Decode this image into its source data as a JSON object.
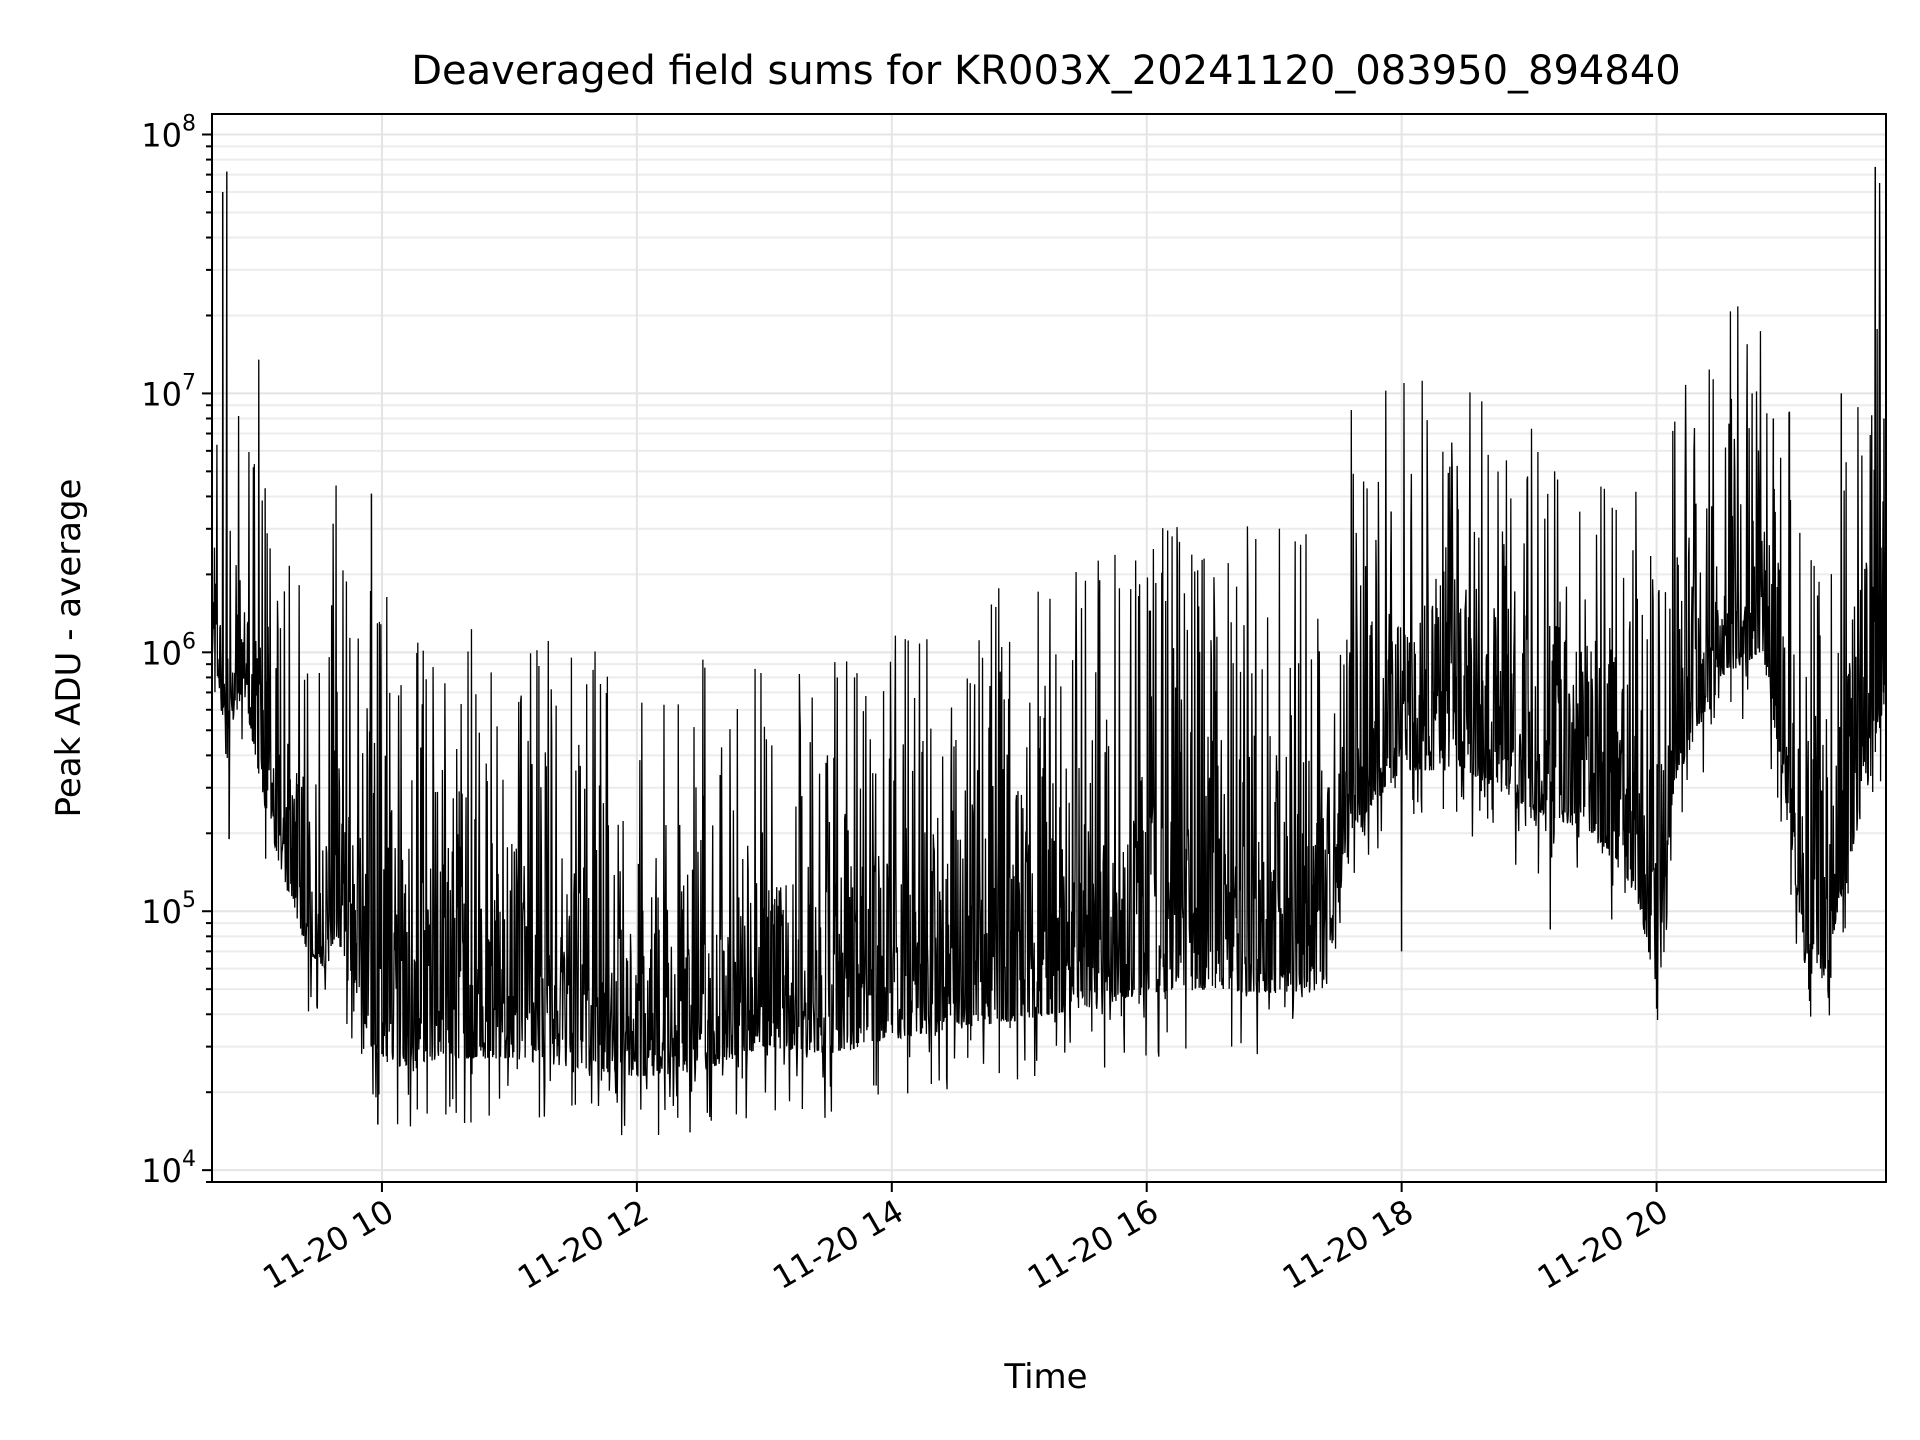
{
  "chart_data": {
    "type": "line",
    "title": "Deaveraged field sums for KR003X_20241120_083950_894840",
    "xlabel": "Time",
    "ylabel": "Peak ADU - average",
    "y_scale": "log",
    "ylim": [
      9000,
      120000000
    ],
    "xlim": [
      "2024-11-20 08:40",
      "2024-11-20 21:48"
    ],
    "grid": true,
    "legend": "none",
    "line_color": "#000000",
    "x_ticks": [
      "11-20 10",
      "11-20 12",
      "11-20 14",
      "11-20 16",
      "11-20 18",
      "11-20 20"
    ],
    "x_tick_times": [
      "2024-11-20 10:00",
      "2024-11-20 12:00",
      "2024-11-20 14:00",
      "2024-11-20 16:00",
      "2024-11-20 18:00",
      "2024-11-20 20:00"
    ],
    "y_ticks": [
      {
        "base": "10",
        "exp": "4",
        "value": 10000
      },
      {
        "base": "10",
        "exp": "5",
        "value": 100000
      },
      {
        "base": "10",
        "exp": "6",
        "value": 1000000
      },
      {
        "base": "10",
        "exp": "7",
        "value": 10000000
      },
      {
        "base": "10",
        "exp": "8",
        "value": 100000000
      }
    ],
    "trend": {
      "x": [
        "2024-11-20 08:40",
        "2024-11-20 08:44",
        "2024-11-20 08:48",
        "2024-11-20 08:55",
        "2024-11-20 09:05",
        "2024-11-20 09:15",
        "2024-11-20 09:25",
        "2024-11-20 09:33",
        "2024-11-20 09:38",
        "2024-11-20 09:45",
        "2024-11-20 09:55",
        "2024-11-20 10:05",
        "2024-11-20 10:30",
        "2024-11-20 11:00",
        "2024-11-20 11:30",
        "2024-11-20 12:00",
        "2024-11-20 12:30",
        "2024-11-20 13:00",
        "2024-11-20 13:30",
        "2024-11-20 14:00",
        "2024-11-20 14:30",
        "2024-11-20 15:00",
        "2024-11-20 15:30",
        "2024-11-20 16:00",
        "2024-11-20 16:30",
        "2024-11-20 17:00",
        "2024-11-20 17:25",
        "2024-11-20 17:35",
        "2024-11-20 18:00",
        "2024-11-20 18:30",
        "2024-11-20 19:00",
        "2024-11-20 19:30",
        "2024-11-20 19:50",
        "2024-11-20 20:00",
        "2024-11-20 20:08",
        "2024-11-20 20:30",
        "2024-11-20 20:50",
        "2024-11-20 21:00",
        "2024-11-20 21:10",
        "2024-11-20 21:20",
        "2024-11-20 21:30",
        "2024-11-20 21:40",
        "2024-11-20 21:48"
      ],
      "low": [
        1300000,
        600000,
        500000,
        700000,
        250000,
        120000,
        70000,
        60000,
        80000,
        60000,
        30000,
        25000,
        27000,
        27000,
        25000,
        23000,
        24000,
        30000,
        28000,
        32000,
        35000,
        38000,
        42000,
        48000,
        50000,
        48000,
        50000,
        200000,
        350000,
        350000,
        250000,
        200000,
        120000,
        50000,
        300000,
        800000,
        1000000,
        300000,
        60000,
        60000,
        150000,
        300000,
        700000
      ],
      "high": [
        2500000,
        2000000,
        1300000,
        1500000,
        1000000,
        500000,
        250000,
        150000,
        1500000,
        250000,
        400000,
        250000,
        200000,
        200000,
        200000,
        150000,
        200000,
        150000,
        150000,
        200000,
        250000,
        300000,
        400000,
        500000,
        500000,
        500000,
        500000,
        1500000,
        2000000,
        2000000,
        1500000,
        1200000,
        900000,
        400000,
        1500000,
        3000000,
        5000000,
        2000000,
        500000,
        500000,
        1000000,
        3000000,
        5000000
      ]
    },
    "spikes": [
      {
        "x": "2024-11-20 08:45",
        "y": 60000000
      },
      {
        "x": "2024-11-20 08:47",
        "y": 72000000
      },
      {
        "x": "2024-11-20 08:48",
        "y": 190000
      },
      {
        "x": "2024-11-20 09:02",
        "y": 13500000
      },
      {
        "x": "2024-11-20 09:05",
        "y": 4300000
      },
      {
        "x": "2024-11-20 09:55",
        "y": 4100000
      },
      {
        "x": "2024-11-20 09:58",
        "y": 15000
      },
      {
        "x": "2024-11-20 12:25",
        "y": 14000
      },
      {
        "x": "2024-11-20 16:27",
        "y": 2300000
      },
      {
        "x": "2024-11-20 17:55",
        "y": 3500000
      },
      {
        "x": "2024-11-20 18:00",
        "y": 70000
      },
      {
        "x": "2024-11-20 19:12",
        "y": 5000000
      },
      {
        "x": "2024-11-20 19:10",
        "y": 85000
      },
      {
        "x": "2024-11-20 20:00",
        "y": 42000
      },
      {
        "x": "2024-11-20 20:45",
        "y": 10000000
      },
      {
        "x": "2024-11-20 20:55",
        "y": 8000000
      },
      {
        "x": "2024-11-20 21:12",
        "y": 45000
      },
      {
        "x": "2024-11-20 21:27",
        "y": 10000000
      },
      {
        "x": "2024-11-20 21:43",
        "y": 75000000
      },
      {
        "x": "2024-11-20 21:45",
        "y": 65000000
      },
      {
        "x": "2024-11-20 21:47",
        "y": 8000000
      }
    ]
  }
}
